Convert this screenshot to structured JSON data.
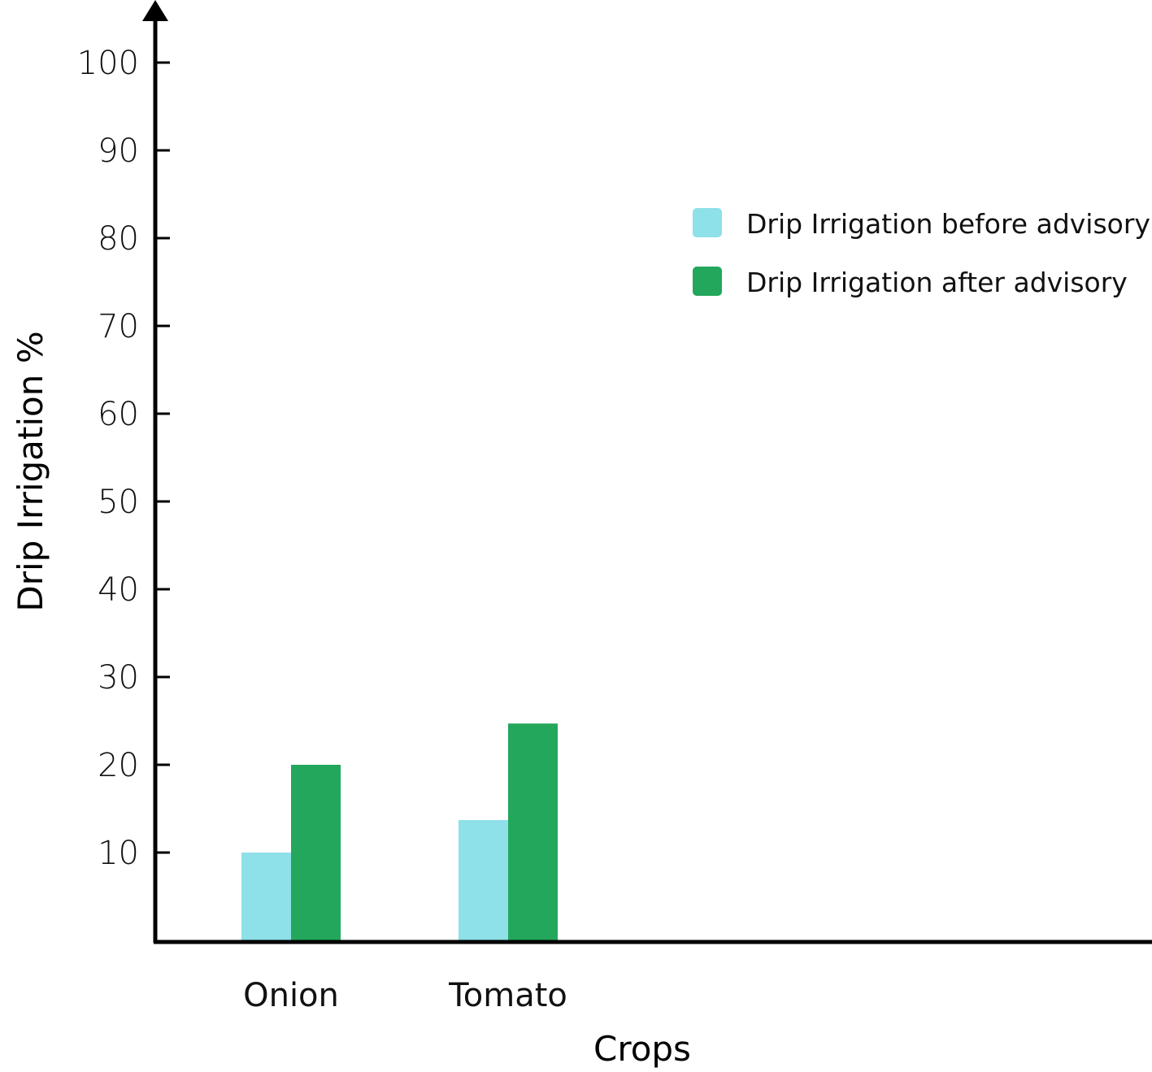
{
  "chart_data": {
    "type": "bar",
    "categories": [
      "Onion",
      "Tomato"
    ],
    "series": [
      {
        "name": "Drip Irrigation before advisory",
        "values": [
          10,
          13.7
        ],
        "color": "#8ee0e9"
      },
      {
        "name": "Drip Irrigation after advisory",
        "values": [
          20,
          24.7
        ],
        "color": "#23a75c"
      }
    ],
    "xlabel": "Crops",
    "ylabel": "Drip Irrigation %",
    "ylim": [
      0,
      100
    ],
    "yticks": [
      10,
      20,
      30,
      40,
      50,
      60,
      70,
      80,
      90,
      100
    ],
    "legend_position": "top-right",
    "grid": false
  }
}
